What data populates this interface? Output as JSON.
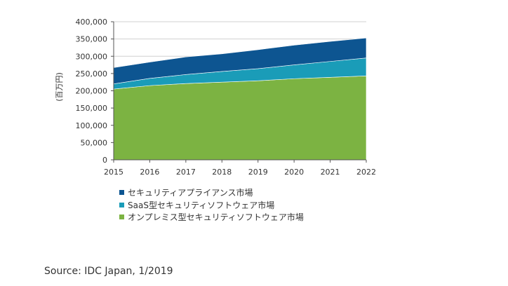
{
  "chart_data": {
    "type": "area",
    "stacked": true,
    "x": [
      2015,
      2016,
      2017,
      2018,
      2019,
      2020,
      2021,
      2022
    ],
    "ylabel": "(百万円)",
    "ylim": [
      0,
      400000
    ],
    "yticks": [
      "0",
      "50,000",
      "100,000",
      "150,000",
      "200,000",
      "250,000",
      "300,000",
      "350,000",
      "400,000"
    ],
    "xticks": [
      "2015",
      "2016",
      "2017",
      "2018",
      "2019",
      "2020",
      "2021",
      "2022"
    ],
    "grid": true,
    "legend_position": "bottom",
    "series": [
      {
        "name": "オンプレミス型セキュリティソフトウェア市場",
        "color": "#7cb342",
        "values": [
          205000,
          215000,
          221000,
          225000,
          229000,
          235000,
          239000,
          243000
        ]
      },
      {
        "name": "SaaS型セキュリティソフトウェア市場",
        "color": "#1a9cb8",
        "values": [
          15000,
          21000,
          26000,
          31000,
          35000,
          40000,
          46000,
          52000
        ]
      },
      {
        "name": "セキュリティアプライアンス市場",
        "color": "#0d5591",
        "values": [
          47000,
          47000,
          51000,
          51000,
          55000,
          57000,
          58000,
          58000
        ]
      }
    ],
    "legend_order": [
      2,
      1,
      0
    ]
  },
  "source_text": "Source: IDC Japan, 1/2019"
}
